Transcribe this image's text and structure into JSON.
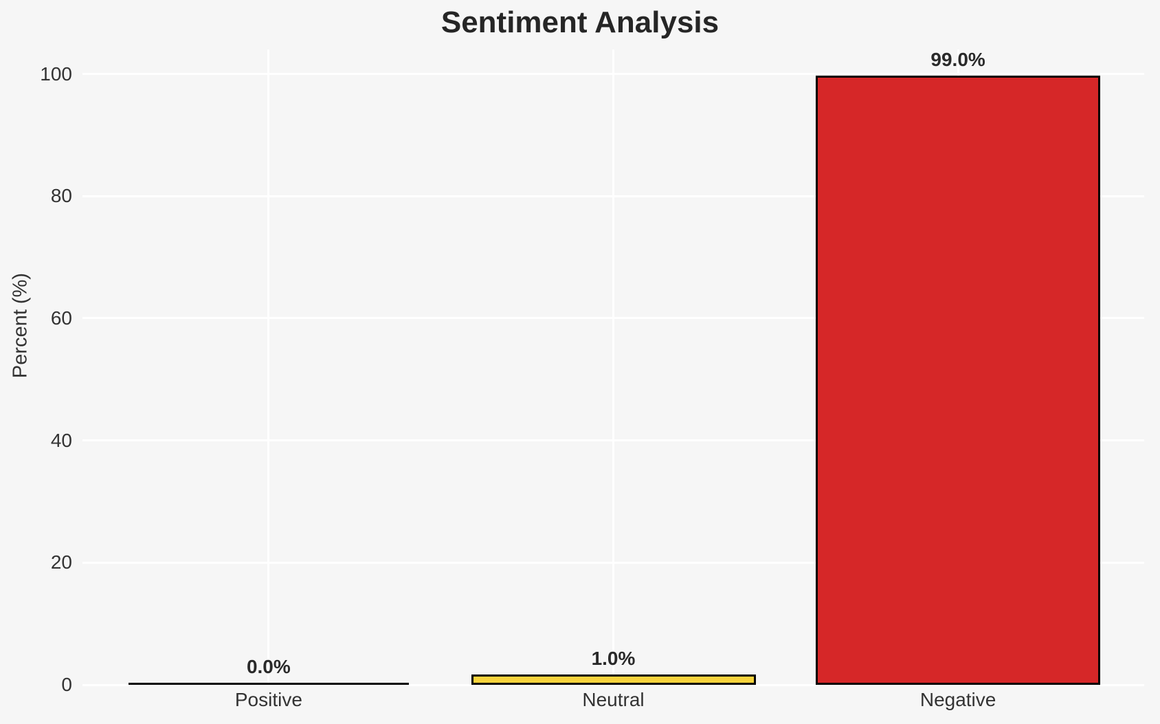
{
  "chart_data": {
    "type": "bar",
    "title": "Sentiment Analysis",
    "xlabel": "",
    "ylabel": "Percent (%)",
    "categories": [
      "Positive",
      "Neutral",
      "Negative"
    ],
    "values": [
      0.0,
      1.0,
      99.0
    ],
    "bar_labels": [
      "0.0%",
      "1.0%",
      "99.0%"
    ],
    "bar_colors": [
      null,
      "#f8d33c",
      "#d62728"
    ],
    "bar_edge_color": "#000000",
    "yticks": [
      0,
      20,
      40,
      60,
      80,
      100
    ],
    "ylim": [
      0,
      104
    ],
    "grid": true,
    "legend": "none",
    "colors": {
      "background": "#f6f6f6",
      "gridline": "#ffffff",
      "title_text": "#262626",
      "tick_text": "#333333",
      "value_label_text": "#2a2a2a"
    }
  }
}
